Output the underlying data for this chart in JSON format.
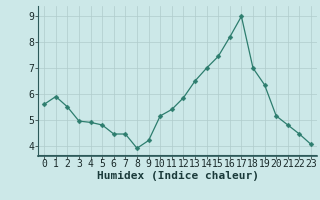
{
  "x": [
    0,
    1,
    2,
    3,
    4,
    5,
    6,
    7,
    8,
    9,
    10,
    11,
    12,
    13,
    14,
    15,
    16,
    17,
    18,
    19,
    20,
    21,
    22,
    23
  ],
  "y": [
    5.6,
    5.9,
    5.5,
    4.95,
    4.9,
    4.8,
    4.45,
    4.45,
    3.9,
    4.2,
    5.15,
    5.4,
    5.85,
    6.5,
    7.0,
    7.45,
    8.2,
    9.0,
    7.0,
    6.35,
    5.15,
    4.8,
    4.45,
    4.05
  ],
  "line_color": "#2d7d6e",
  "marker": "D",
  "marker_size": 2.5,
  "bg_color": "#cce8e8",
  "grid_color_major": "#b0cccc",
  "grid_color_minor": "#c4dcdc",
  "xlabel": "Humidex (Indice chaleur)",
  "xlabel_fontsize": 8,
  "tick_fontsize": 7,
  "ylim": [
    3.6,
    9.4
  ],
  "xlim": [
    -0.5,
    23.5
  ],
  "yticks": [
    4,
    5,
    6,
    7,
    8,
    9
  ],
  "xticks": [
    0,
    1,
    2,
    3,
    4,
    5,
    6,
    7,
    8,
    9,
    10,
    11,
    12,
    13,
    14,
    15,
    16,
    17,
    18,
    19,
    20,
    21,
    22,
    23
  ],
  "bottom_bar_color": "#2d5a5a",
  "spine_color": "#2d5a5a"
}
